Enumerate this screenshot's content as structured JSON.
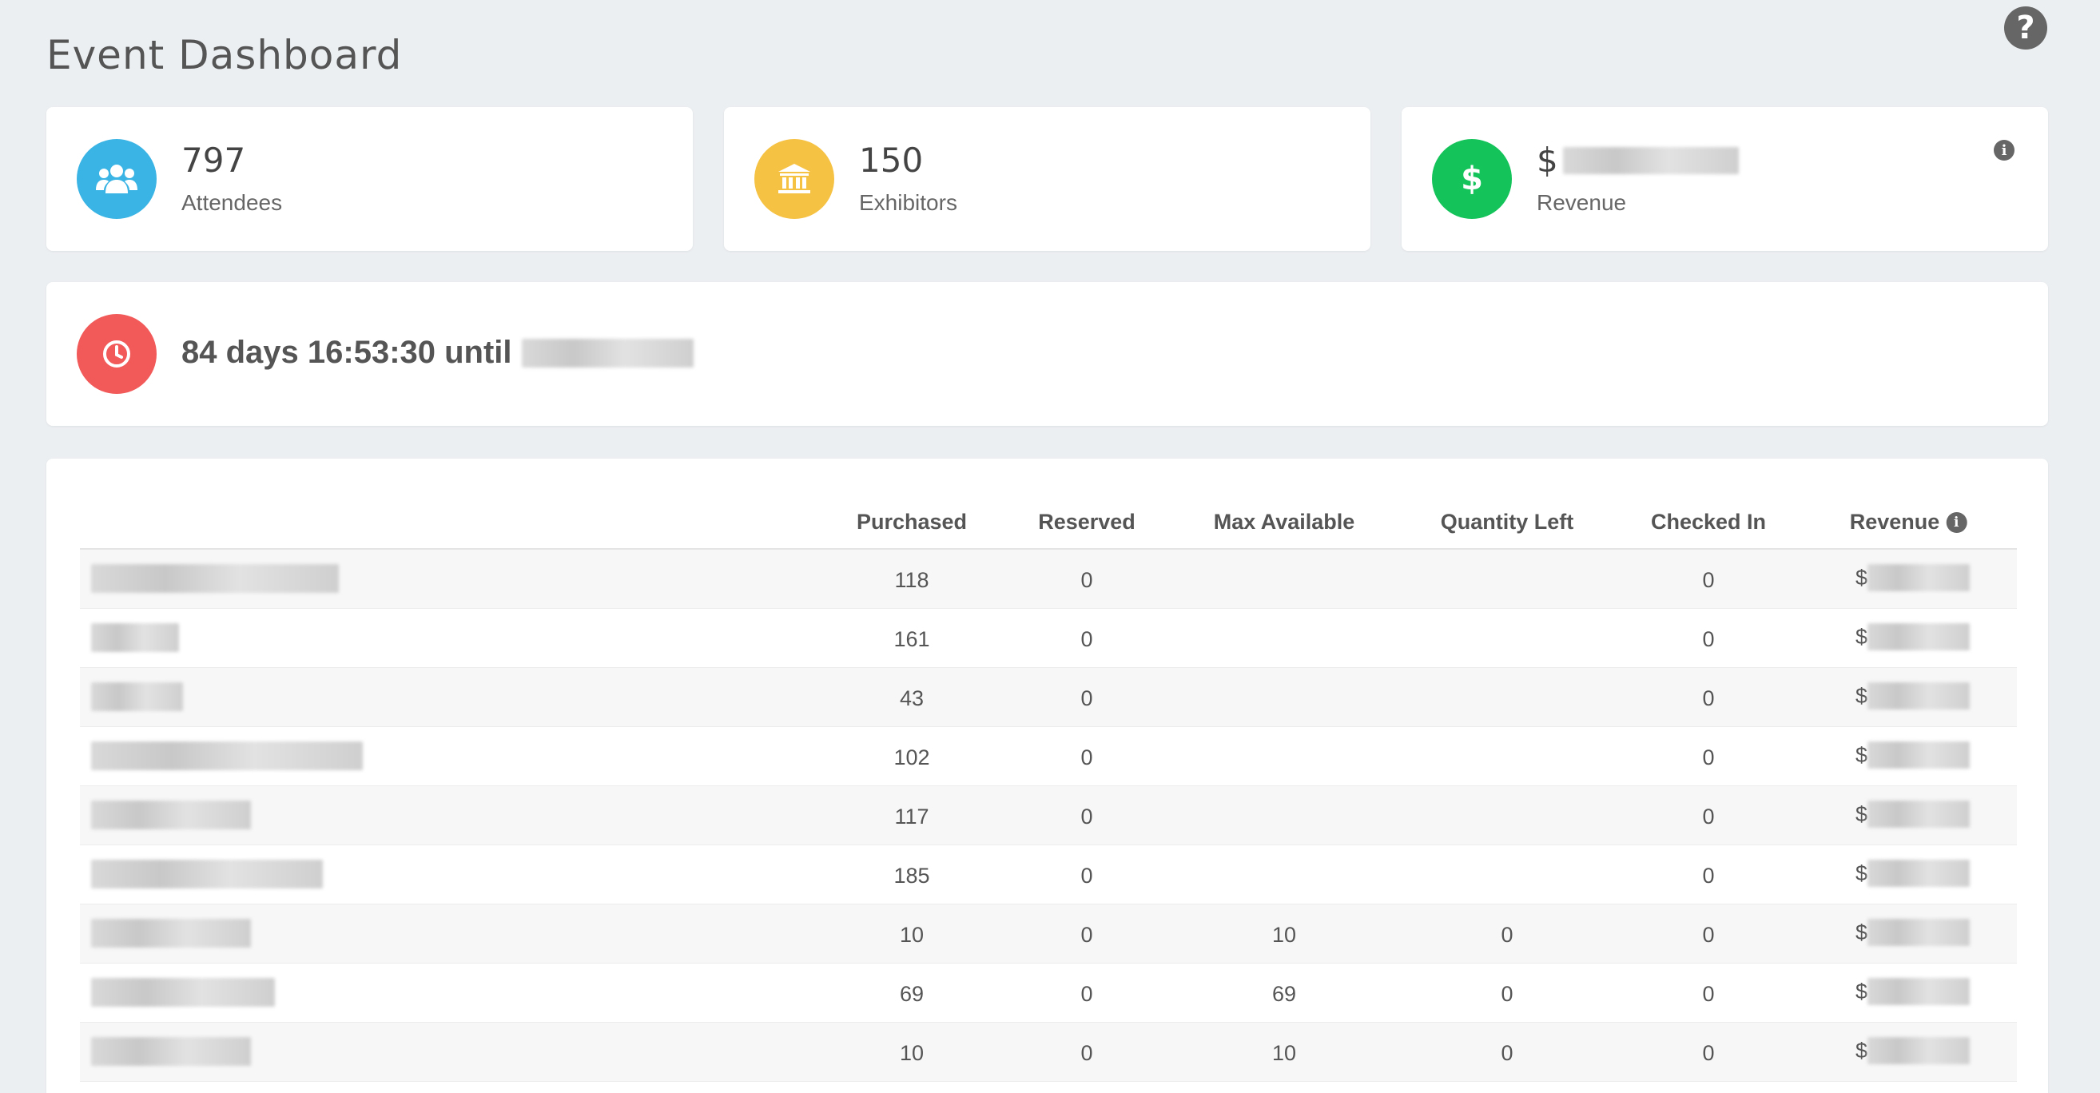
{
  "header": {
    "title": "Event Dashboard",
    "help_symbol": "?"
  },
  "stats": [
    {
      "value": "797",
      "label": "Attendees",
      "icon": "users-icon",
      "color": "#3ab4e4"
    },
    {
      "value": "150",
      "label": "Exhibitors",
      "icon": "bank-icon",
      "color": "#f6c244"
    },
    {
      "value": "$",
      "label": "Revenue",
      "icon": "dollar-icon",
      "color": "#14c35a"
    }
  ],
  "countdown": {
    "text": "84 days 16:53:30 until",
    "icon": "clock-icon",
    "color": "#f25a5a"
  },
  "table": {
    "columns": [
      "Purchased",
      "Reserved",
      "Max Available",
      "Quantity Left",
      "Checked In",
      "Revenue"
    ],
    "rows": [
      {
        "purchased": "118",
        "reserved": "0",
        "max_available": "",
        "quantity_left": "",
        "checked_in": "0",
        "revenue": "$"
      },
      {
        "purchased": "161",
        "reserved": "0",
        "max_available": "",
        "quantity_left": "",
        "checked_in": "0",
        "revenue": "$"
      },
      {
        "purchased": "43",
        "reserved": "0",
        "max_available": "",
        "quantity_left": "",
        "checked_in": "0",
        "revenue": "$"
      },
      {
        "purchased": "102",
        "reserved": "0",
        "max_available": "",
        "quantity_left": "",
        "checked_in": "0",
        "revenue": "$"
      },
      {
        "purchased": "117",
        "reserved": "0",
        "max_available": "",
        "quantity_left": "",
        "checked_in": "0",
        "revenue": "$"
      },
      {
        "purchased": "185",
        "reserved": "0",
        "max_available": "",
        "quantity_left": "",
        "checked_in": "0",
        "revenue": "$"
      },
      {
        "purchased": "10",
        "reserved": "0",
        "max_available": "10",
        "quantity_left": "0",
        "checked_in": "0",
        "revenue": "$"
      },
      {
        "purchased": "69",
        "reserved": "0",
        "max_available": "69",
        "quantity_left": "0",
        "checked_in": "0",
        "revenue": "$"
      },
      {
        "purchased": "10",
        "reserved": "0",
        "max_available": "10",
        "quantity_left": "0",
        "checked_in": "0",
        "revenue": "$"
      }
    ]
  }
}
